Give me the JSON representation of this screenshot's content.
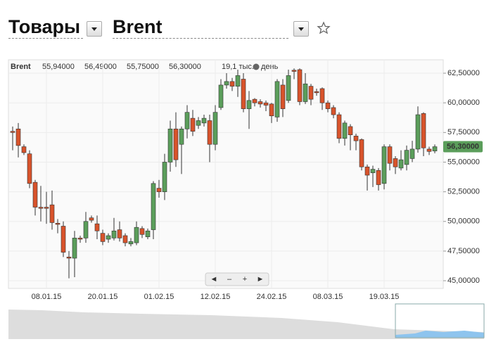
{
  "header": {
    "category": "Товары",
    "instrument": "Brent"
  },
  "chart_data": {
    "type": "candlestick",
    "info": {
      "name": "Brent",
      "values": [
        55.94,
        56.49,
        55.75,
        56.3
      ],
      "value_labels": [
        "55,94000",
        "56,49000",
        "55,75000",
        "56,30000"
      ],
      "volume_label": "19,1 тыс.",
      "period": "день"
    },
    "last_price": {
      "value": 56.3,
      "label": "56,30000"
    },
    "up_color": "#5b9e5b",
    "down_color": "#d8532b",
    "categories": [
      null,
      null,
      null,
      null,
      null,
      null,
      "08.01.15",
      null,
      null,
      null,
      null,
      null,
      null,
      null,
      null,
      null,
      "20.01.15",
      null,
      null,
      null,
      null,
      null,
      null,
      null,
      null,
      null,
      "01.02.15",
      null,
      null,
      null,
      null,
      null,
      null,
      null,
      null,
      null,
      "12.02.15",
      null,
      null,
      null,
      null,
      null,
      null,
      null,
      null,
      null,
      "24.02.15",
      null,
      null,
      null,
      null,
      null,
      null,
      null,
      null,
      null,
      "08.03.15",
      null,
      null,
      null,
      null,
      null,
      null,
      null,
      null,
      null,
      "19.03.15",
      null,
      null,
      null,
      null,
      null,
      null,
      null,
      null,
      null
    ],
    "series": [
      {
        "name": "Brent",
        "open": [
          57.6,
          57.8,
          56.3,
          55.7,
          53.3,
          51.2,
          51.2,
          51.4,
          49.85,
          49.6,
          47.0,
          46.9,
          48.6,
          48.6,
          50.3,
          49.8,
          49.0,
          48.5,
          48.6,
          49.3,
          48.8,
          48.1,
          48.2,
          49.4,
          48.7,
          49.3,
          52.8,
          52.5,
          55.0,
          57.8,
          56.5,
          57.8,
          58.7,
          58.1,
          58.3,
          58.5,
          56.5,
          59.6,
          61.5,
          61.8,
          61.4,
          62.0,
          59.5,
          60.3,
          60.1,
          60.0,
          59.9,
          58.8,
          61.5,
          60.2,
          62.75,
          62.8,
          60.1,
          61.4,
          60.95,
          61.2,
          60.0,
          59.6,
          59.0,
          57.0,
          58.0,
          57.2,
          56.9,
          54.6,
          54.1,
          54.3,
          53.2,
          56.3,
          55.3,
          54.5,
          54.8,
          55.3,
          56.1,
          59.1,
          56.1,
          55.94
        ],
        "high": [
          58.0,
          58.3,
          56.5,
          56.0,
          53.5,
          53.0,
          52.5,
          52.6,
          50.2,
          50.0,
          47.5,
          49.2,
          48.8,
          50.8,
          50.5,
          50.5,
          49.3,
          49.0,
          50.3,
          50.0,
          49.0,
          48.6,
          50.0,
          49.6,
          49.4,
          53.4,
          53.5,
          55.7,
          58.5,
          59.2,
          58.0,
          59.8,
          59.4,
          58.8,
          59.0,
          59.0,
          59.8,
          62.0,
          62.5,
          62.1,
          62.8,
          62.5,
          61.0,
          60.4,
          60.3,
          60.2,
          60.0,
          62.0,
          62.0,
          62.8,
          62.9,
          62.9,
          62.5,
          61.6,
          61.2,
          61.3,
          60.2,
          59.8,
          59.2,
          58.5,
          58.2,
          57.4,
          57.0,
          54.8,
          54.7,
          54.5,
          56.5,
          56.5,
          55.5,
          56.0,
          56.4,
          56.8,
          59.7,
          59.2,
          56.3,
          56.49
        ],
        "low": [
          56.0,
          55.4,
          55.6,
          52.8,
          50.5,
          50.0,
          49.8,
          49.3,
          49.0,
          47.0,
          45.2,
          45.3,
          48.2,
          48.2,
          49.9,
          48.5,
          48.0,
          48.2,
          48.4,
          48.3,
          47.9,
          47.9,
          48.0,
          48.6,
          48.5,
          48.5,
          52.0,
          51.8,
          54.2,
          54.6,
          54.0,
          57.0,
          57.2,
          57.8,
          58.0,
          55.0,
          56.0,
          59.4,
          61.2,
          61.0,
          60.5,
          59.2,
          57.8,
          59.7,
          59.6,
          59.3,
          58.3,
          58.4,
          58.8,
          60.0,
          62.0,
          59.8,
          59.9,
          59.8,
          60.6,
          59.4,
          59.2,
          58.7,
          56.6,
          56.4,
          56.0,
          56.0,
          54.3,
          52.6,
          52.9,
          52.6,
          52.7,
          54.3,
          54.0,
          54.3,
          54.3,
          55.0,
          55.8,
          55.5,
          55.6,
          55.75
        ],
        "close": [
          57.5,
          56.4,
          55.8,
          53.2,
          51.2,
          51.1,
          51.1,
          49.9,
          49.75,
          47.4,
          46.9,
          48.6,
          48.5,
          50.0,
          50.1,
          49.2,
          48.3,
          48.8,
          49.2,
          48.6,
          48.2,
          48.3,
          49.5,
          48.9,
          49.2,
          53.2,
          52.5,
          55.0,
          57.8,
          55.2,
          57.8,
          59.2,
          57.6,
          58.5,
          58.7,
          56.5,
          59.2,
          61.5,
          61.8,
          61.4,
          62.3,
          59.5,
          60.2,
          60.0,
          59.9,
          59.8,
          58.9,
          61.8,
          59.5,
          62.3,
          62.65,
          60.1,
          61.6,
          60.3,
          60.85,
          60.0,
          59.5,
          59.0,
          57.0,
          58.3,
          57.3,
          56.8,
          54.6,
          53.9,
          54.4,
          53.1,
          56.3,
          54.9,
          54.6,
          55.2,
          56.0,
          56.1,
          59.0,
          56.2,
          55.9,
          56.3
        ]
      }
    ],
    "ylim": [
      44.35,
      63.63
    ],
    "yticks": [
      {
        "value": 45,
        "label": "45,00000"
      },
      {
        "value": 47.5,
        "label": "47,50000"
      },
      {
        "value": 50,
        "label": "50,00000"
      },
      {
        "value": 52.5,
        "label": "52,50000"
      },
      {
        "value": 55,
        "label": "55,00000"
      },
      {
        "value": 57.5,
        "label": "57,50000"
      },
      {
        "value": 60,
        "label": "60,00000"
      },
      {
        "value": 62.5,
        "label": "62,50000"
      }
    ],
    "grid": true,
    "nav_buttons": [
      "◄",
      "–",
      "+",
      "►"
    ]
  }
}
